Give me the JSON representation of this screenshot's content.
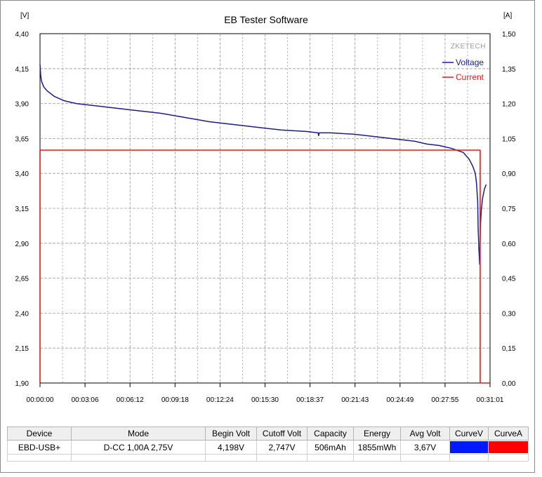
{
  "chart_data": {
    "type": "line",
    "title": "EB Tester Software",
    "watermark": "ZKETECH",
    "y_left_unit": "[V]",
    "y_right_unit": "[A]",
    "ylim_left": [
      1.9,
      4.4
    ],
    "ylim_right": [
      0.0,
      1.5
    ],
    "xlim_seconds": [
      0,
      1861
    ],
    "y_left_ticks": [
      "4,40",
      "4,15",
      "3,90",
      "3,65",
      "3,40",
      "3,15",
      "2,90",
      "2,65",
      "2,40",
      "2,15",
      "1,90"
    ],
    "y_right_ticks": [
      "1,50",
      "1,35",
      "1,20",
      "1,05",
      "0,90",
      "0,75",
      "0,60",
      "0,45",
      "0,30",
      "0,15",
      "0,00"
    ],
    "x_ticks": [
      "00:00:00",
      "00:03:06",
      "00:06:12",
      "00:09:18",
      "00:12:24",
      "00:15:30",
      "00:18:37",
      "00:21:43",
      "00:24:49",
      "00:27:55",
      "00:31:01"
    ],
    "grid": true,
    "legend_position": "top-right",
    "colors": {
      "voltage": "#1c1c8c",
      "current": "#e01c1c",
      "axis": "#000000",
      "grid": "#9a9a9a"
    },
    "series": [
      {
        "name": "Voltage",
        "axis": "left",
        "points": [
          [
            0,
            4.18
          ],
          [
            3,
            4.1
          ],
          [
            6,
            4.06
          ],
          [
            15,
            4.02
          ],
          [
            30,
            3.99
          ],
          [
            60,
            3.95
          ],
          [
            100,
            3.92
          ],
          [
            150,
            3.9
          ],
          [
            200,
            3.89
          ],
          [
            300,
            3.87
          ],
          [
            400,
            3.85
          ],
          [
            500,
            3.83
          ],
          [
            600,
            3.8
          ],
          [
            700,
            3.77
          ],
          [
            800,
            3.75
          ],
          [
            900,
            3.73
          ],
          [
            1000,
            3.71
          ],
          [
            1100,
            3.7
          ],
          [
            1150,
            3.69
          ],
          [
            1152,
            3.67
          ],
          [
            1155,
            3.69
          ],
          [
            1200,
            3.69
          ],
          [
            1300,
            3.68
          ],
          [
            1400,
            3.66
          ],
          [
            1500,
            3.64
          ],
          [
            1550,
            3.63
          ],
          [
            1600,
            3.61
          ],
          [
            1650,
            3.6
          ],
          [
            1700,
            3.58
          ],
          [
            1750,
            3.55
          ],
          [
            1775,
            3.5
          ],
          [
            1790,
            3.45
          ],
          [
            1800,
            3.4
          ],
          [
            1805,
            3.33
          ],
          [
            1810,
            3.2
          ],
          [
            1812,
            3.0
          ],
          [
            1815,
            2.85
          ],
          [
            1818,
            2.75
          ],
          [
            1821,
            3.02
          ],
          [
            1823,
            3.08
          ],
          [
            1825,
            3.14
          ],
          [
            1830,
            3.22
          ],
          [
            1838,
            3.29
          ],
          [
            1845,
            3.32
          ]
        ]
      },
      {
        "name": "Current",
        "axis": "right",
        "points": [
          [
            0,
            0.0
          ],
          [
            0,
            1.0
          ],
          [
            1820,
            1.0
          ],
          [
            1820,
            0.0
          ],
          [
            1861,
            0.0
          ]
        ]
      }
    ]
  },
  "table": {
    "headers": [
      "Device",
      "Mode",
      "Begin Volt",
      "Cutoff Volt",
      "Capacity",
      "Energy",
      "Avg Volt",
      "CurveV",
      "CurveA"
    ],
    "row": {
      "device": "EBD-USB+",
      "mode": "D-CC  1,00A  2,75V",
      "begin_volt": "4,198V",
      "cutoff_volt": "2,747V",
      "capacity": "506mAh",
      "energy": "1855mWh",
      "avg_volt": "3,67V",
      "curve_v_color": "#0019ff",
      "curve_a_color": "#ff0000"
    }
  }
}
